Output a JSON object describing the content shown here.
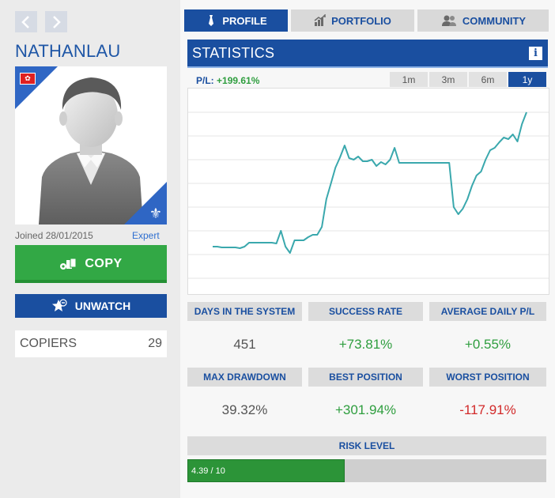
{
  "profile": {
    "username": "NATHANLAU",
    "joined": "Joined 28/01/2015",
    "level": "Expert",
    "copy_label": "COPY",
    "unwatch_label": "UNWATCH",
    "copiers_label": "COPIERS",
    "copiers_count": "29",
    "icons": [
      "chevron-left-icon",
      "chevron-right-icon",
      "flag-icon",
      "fleur-de-lis-icon",
      "copy-icon",
      "watch-star-icon"
    ]
  },
  "tabs": [
    {
      "label": "PROFILE",
      "active": true,
      "icon": "tie-icon"
    },
    {
      "label": "PORTFOLIO",
      "active": false,
      "icon": "portfolio-icon"
    },
    {
      "label": "COMMUNITY",
      "active": false,
      "icon": "community-icon"
    }
  ],
  "statistics": {
    "title": "STATISTICS",
    "pl_label": "P/L:",
    "pl_value": "+199.61%",
    "periods": [
      {
        "label": "1m",
        "active": false
      },
      {
        "label": "3m",
        "active": false
      },
      {
        "label": "6m",
        "active": false
      },
      {
        "label": "1y",
        "active": true
      }
    ]
  },
  "chart_data": {
    "type": "line",
    "title": "",
    "xlabel": "",
    "ylabel": "",
    "grid": true,
    "line_color": "#3aa8ad",
    "series": [
      {
        "values": [
          30,
          30,
          29,
          29,
          29,
          29,
          28,
          30,
          35,
          35,
          35,
          35,
          35,
          35,
          34,
          50,
          30,
          22,
          38,
          38,
          38,
          42,
          45,
          45,
          55,
          90,
          110,
          130,
          143,
          158,
          142,
          140,
          144,
          138,
          138,
          140,
          132,
          137,
          134,
          140,
          155,
          136,
          136,
          136,
          136,
          136,
          136,
          136,
          136,
          136,
          136,
          136,
          136,
          80,
          71,
          78,
          90,
          107,
          120,
          125,
          140,
          152,
          155,
          162,
          168,
          166,
          172,
          163,
          185,
          200
        ]
      }
    ]
  },
  "stats": [
    {
      "label": "DAYS IN THE SYSTEM",
      "value": "451",
      "tone": "grey"
    },
    {
      "label": "SUCCESS RATE",
      "value": "+73.81%",
      "tone": "green"
    },
    {
      "label": "AVERAGE DAILY P/L",
      "value": "+0.55%",
      "tone": "green"
    },
    {
      "label": "MAX DRAWDOWN",
      "value": "39.32%",
      "tone": "grey"
    },
    {
      "label": "BEST POSITION",
      "value": "+301.94%",
      "tone": "green"
    },
    {
      "label": "WORST POSITION",
      "value": "-117.91%",
      "tone": "red"
    }
  ],
  "risk": {
    "label": "RISK LEVEL",
    "value_text": "4.39 / 10",
    "fraction": 0.439
  }
}
